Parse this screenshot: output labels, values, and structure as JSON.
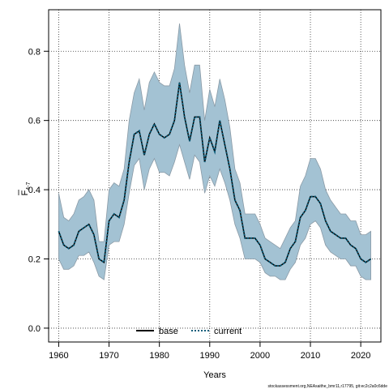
{
  "chart_data": {
    "type": "line",
    "xlabel": "Years",
    "ylabel": "F",
    "ylabel_subscript": "4-7",
    "xlim": [
      1958,
      2024
    ],
    "ylim": [
      -0.04,
      0.92
    ],
    "xticks": [
      1960,
      1970,
      1980,
      1990,
      2000,
      2010,
      2020
    ],
    "yticks": [
      0.0,
      0.2,
      0.4,
      0.6,
      0.8
    ],
    "ytick_labels": [
      "0.0",
      "0.2",
      "0.4",
      "0.6",
      "0.8"
    ],
    "grid": true,
    "legend_position": "bottom-center",
    "band_color": "#a3c2d3",
    "band_edge_color": "#8a9aa6",
    "x": [
      1960,
      1961,
      1962,
      1963,
      1964,
      1965,
      1966,
      1967,
      1968,
      1969,
      1970,
      1971,
      1972,
      1973,
      1974,
      1975,
      1976,
      1977,
      1978,
      1979,
      1980,
      1981,
      1982,
      1983,
      1984,
      1985,
      1986,
      1987,
      1988,
      1989,
      1990,
      1991,
      1992,
      1993,
      1994,
      1995,
      1996,
      1997,
      1998,
      1999,
      2000,
      2001,
      2002,
      2003,
      2004,
      2005,
      2006,
      2007,
      2008,
      2009,
      2010,
      2011,
      2012,
      2013,
      2014,
      2015,
      2016,
      2017,
      2018,
      2019,
      2020,
      2021,
      2022
    ],
    "band_upper": [
      0.39,
      0.32,
      0.31,
      0.33,
      0.37,
      0.38,
      0.4,
      0.37,
      0.25,
      0.25,
      0.4,
      0.42,
      0.41,
      0.46,
      0.6,
      0.68,
      0.72,
      0.63,
      0.71,
      0.74,
      0.71,
      0.7,
      0.7,
      0.75,
      0.88,
      0.76,
      0.68,
      0.76,
      0.76,
      0.6,
      0.69,
      0.64,
      0.72,
      0.66,
      0.58,
      0.46,
      0.42,
      0.33,
      0.33,
      0.33,
      0.3,
      0.26,
      0.25,
      0.24,
      0.23,
      0.26,
      0.29,
      0.31,
      0.41,
      0.44,
      0.49,
      0.49,
      0.46,
      0.4,
      0.37,
      0.35,
      0.33,
      0.33,
      0.31,
      0.31,
      0.27,
      0.27,
      0.28
    ],
    "band_lower": [
      0.2,
      0.17,
      0.17,
      0.18,
      0.21,
      0.21,
      0.22,
      0.19,
      0.15,
      0.14,
      0.24,
      0.25,
      0.25,
      0.3,
      0.39,
      0.47,
      0.49,
      0.4,
      0.46,
      0.49,
      0.45,
      0.45,
      0.44,
      0.48,
      0.53,
      0.48,
      0.43,
      0.5,
      0.48,
      0.39,
      0.44,
      0.41,
      0.46,
      0.42,
      0.37,
      0.3,
      0.26,
      0.2,
      0.2,
      0.2,
      0.19,
      0.16,
      0.15,
      0.15,
      0.14,
      0.14,
      0.17,
      0.19,
      0.24,
      0.26,
      0.3,
      0.31,
      0.29,
      0.24,
      0.22,
      0.21,
      0.2,
      0.2,
      0.18,
      0.18,
      0.15,
      0.14,
      0.14
    ],
    "series": [
      {
        "name": "base",
        "style": "solid",
        "color": "#000000",
        "values": [
          0.28,
          0.24,
          0.23,
          0.24,
          0.28,
          0.29,
          0.3,
          0.27,
          0.2,
          0.19,
          0.31,
          0.33,
          0.32,
          0.37,
          0.48,
          0.56,
          0.57,
          0.5,
          0.56,
          0.59,
          0.56,
          0.55,
          0.56,
          0.6,
          0.71,
          0.61,
          0.54,
          0.61,
          0.61,
          0.48,
          0.55,
          0.51,
          0.6,
          0.53,
          0.46,
          0.37,
          0.34,
          0.26,
          0.26,
          0.26,
          0.24,
          0.2,
          0.19,
          0.18,
          0.18,
          0.19,
          0.23,
          0.25,
          0.32,
          0.34,
          0.38,
          0.38,
          0.36,
          0.31,
          0.28,
          0.27,
          0.26,
          0.26,
          0.24,
          0.23,
          0.2,
          0.19,
          0.2
        ]
      },
      {
        "name": "current",
        "style": "dotted",
        "color": "#0b5d7a",
        "values": [
          0.28,
          0.24,
          0.23,
          0.24,
          0.28,
          0.29,
          0.3,
          0.27,
          0.2,
          0.19,
          0.31,
          0.33,
          0.32,
          0.37,
          0.48,
          0.56,
          0.57,
          0.5,
          0.56,
          0.59,
          0.56,
          0.55,
          0.56,
          0.6,
          0.71,
          0.61,
          0.54,
          0.61,
          0.61,
          0.48,
          0.55,
          0.51,
          0.6,
          0.53,
          0.46,
          0.37,
          0.34,
          0.26,
          0.26,
          0.26,
          0.24,
          0.2,
          0.19,
          0.18,
          0.18,
          0.19,
          0.23,
          0.25,
          0.32,
          0.34,
          0.38,
          0.38,
          0.36,
          0.31,
          0.28,
          0.27,
          0.26,
          0.26,
          0.24,
          0.23,
          0.2,
          0.19,
          0.2
        ]
      }
    ],
    "footnote": "stockassessment.org,NEAsaithe_bmr11,r17795, git:ec2c2a0c6dde"
  }
}
